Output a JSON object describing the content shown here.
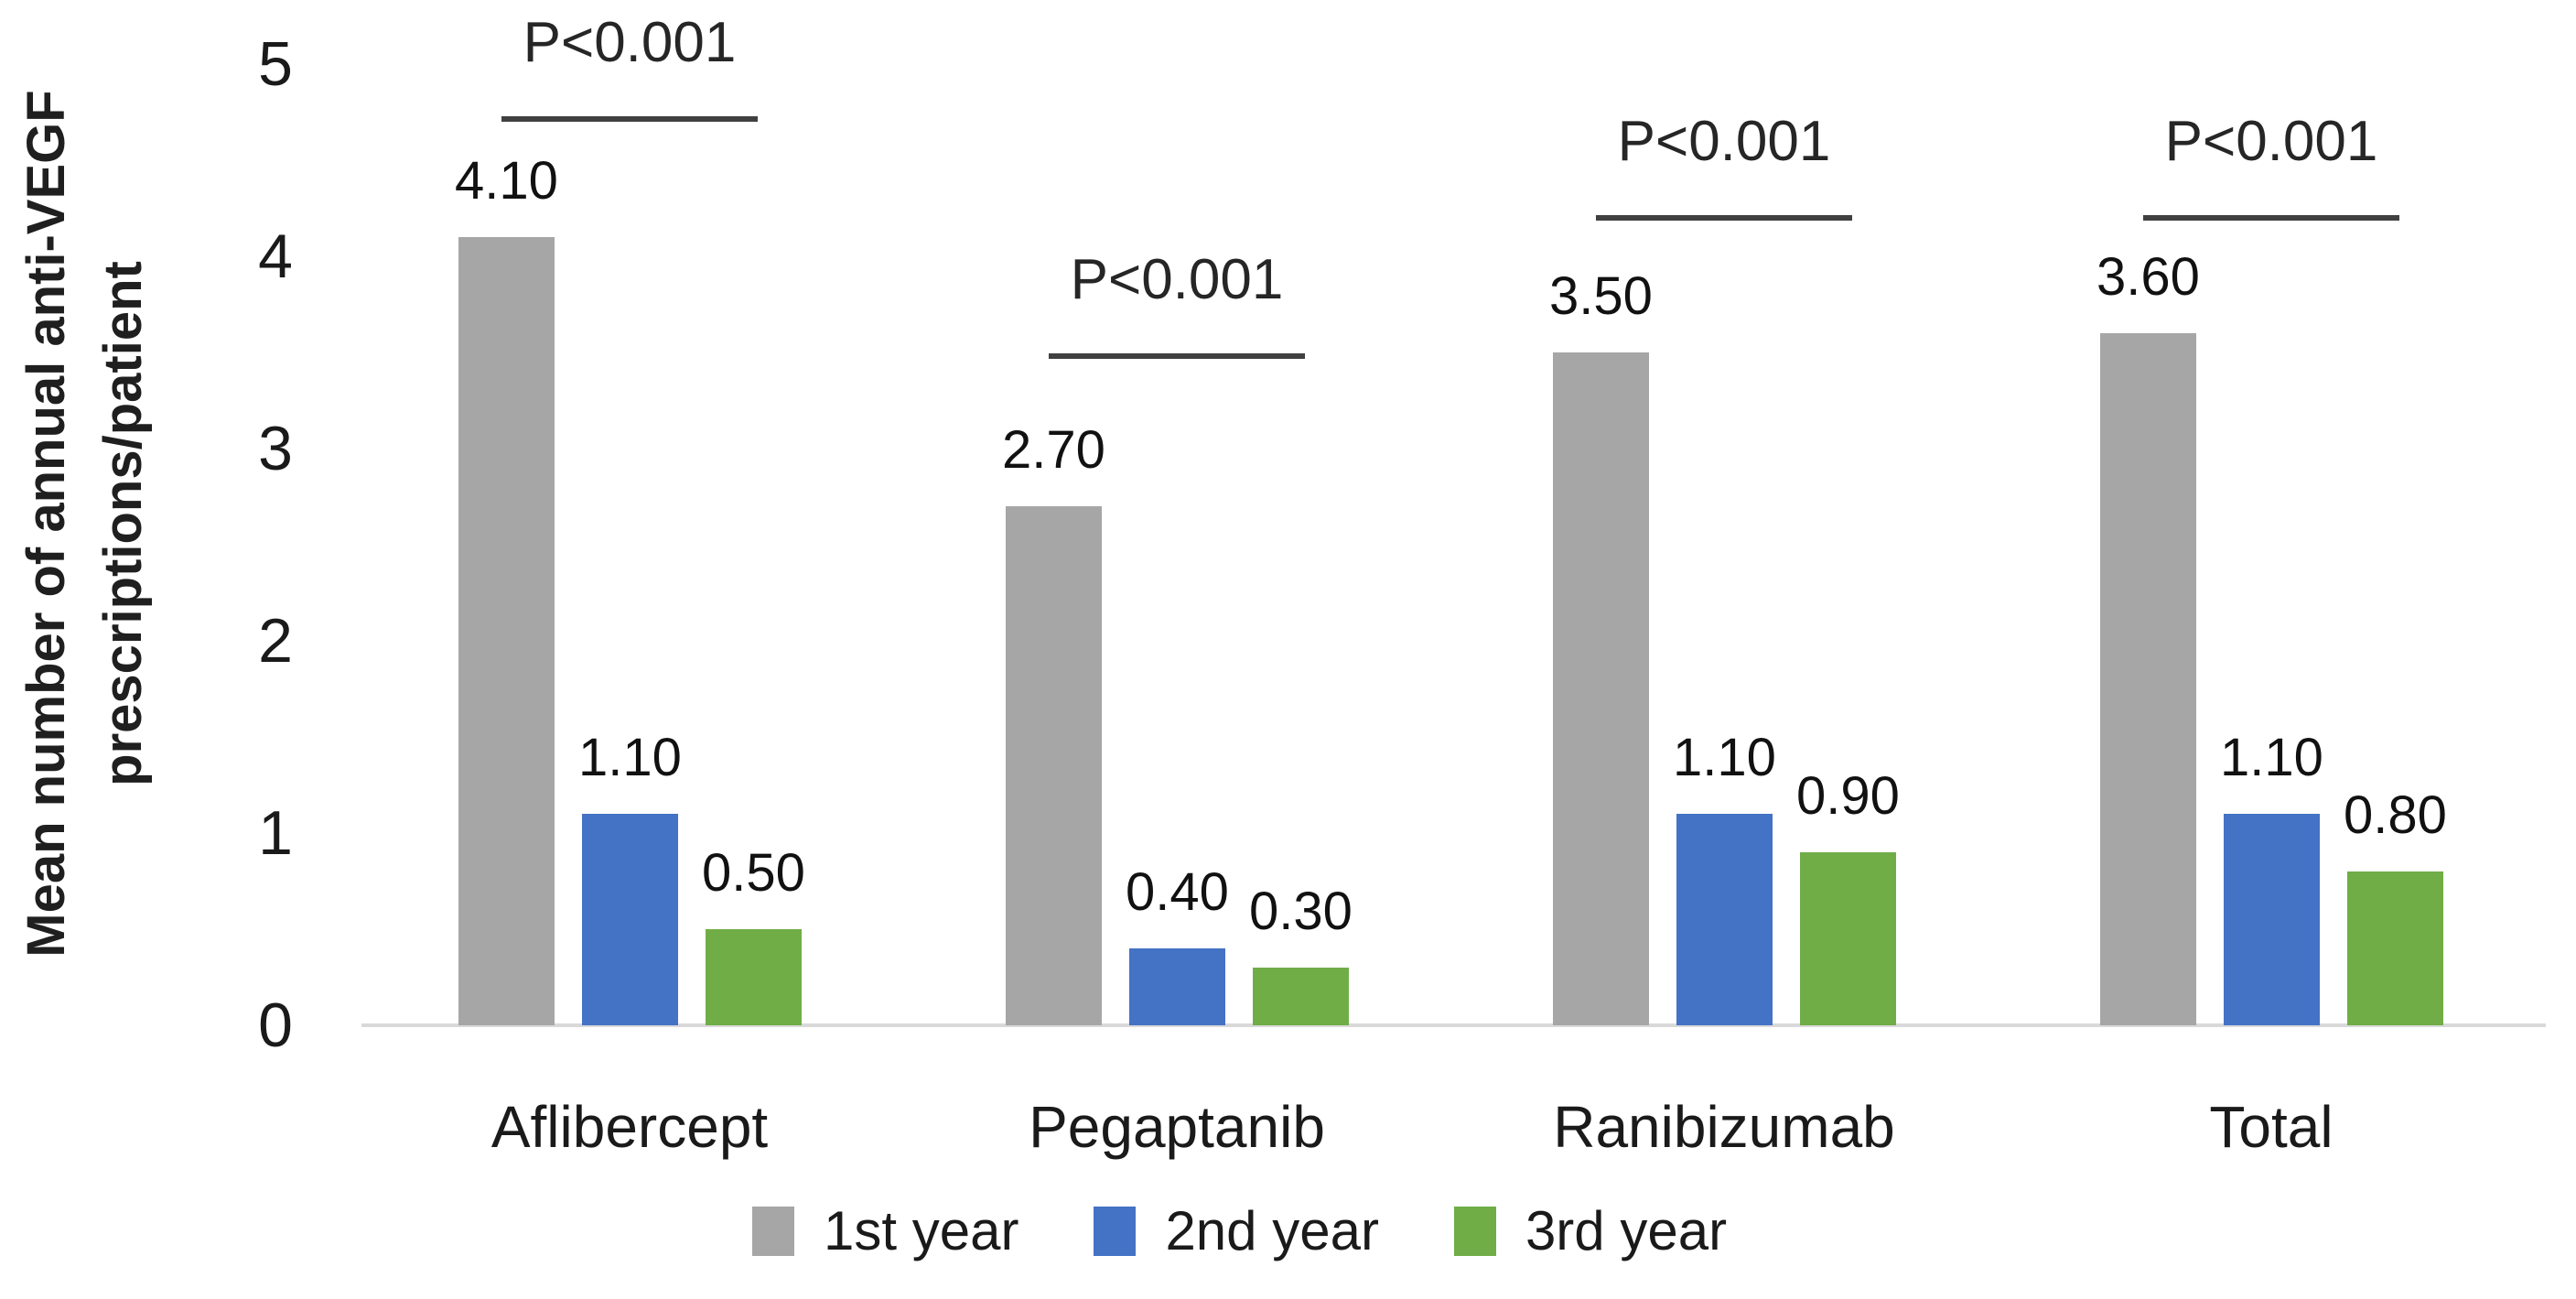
{
  "chart_data": {
    "type": "bar",
    "title": "",
    "xlabel": "",
    "ylabel": "Mean number of annual anti-VEGF prescriptions/patient",
    "ylabel_lines": [
      "Mean number of annual anti-VEGF",
      "prescriptions/patient"
    ],
    "categories": [
      "Aflibercept",
      "Pegaptanib",
      "Ranibizumab",
      "Total"
    ],
    "series": [
      {
        "name": "1st year",
        "color": "#A6A6A6",
        "values": [
          4.1,
          2.7,
          3.5,
          3.6
        ]
      },
      {
        "name": "2nd year",
        "color": "#4472C4",
        "values": [
          1.1,
          0.4,
          1.1,
          1.1
        ]
      },
      {
        "name": "3rd year",
        "color": "#70AD47",
        "values": [
          0.5,
          0.3,
          0.9,
          0.8
        ]
      }
    ],
    "value_labels": [
      [
        "4.10",
        "1.10",
        "0.50"
      ],
      [
        "2.70",
        "0.40",
        "0.30"
      ],
      [
        "3.50",
        "1.10",
        "0.90"
      ],
      [
        "3.60",
        "1.10",
        "0.80"
      ]
    ],
    "significance_labels": [
      "P<0.001",
      "P<0.001",
      "P<0.001",
      "P<0.001"
    ],
    "y_ticks": [
      0,
      1,
      2,
      3,
      4,
      5
    ],
    "ylim": [
      0,
      5
    ],
    "grid": false,
    "legend_position": "bottom",
    "colors": {
      "axis_line": "#D9D9D9",
      "bracket_line": "#404040",
      "text": "#1A1A1A",
      "background": "#FFFFFF"
    }
  }
}
